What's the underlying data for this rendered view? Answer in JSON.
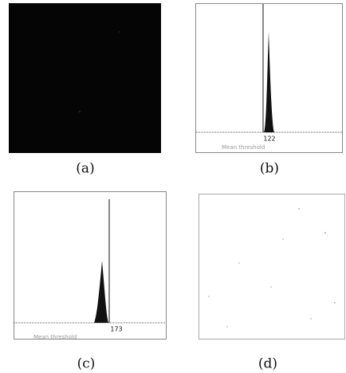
{
  "panels": [
    {
      "caption": "(a)"
    },
    {
      "caption": "(b)",
      "threshold_label": "122",
      "axis_note": "Mean threshold"
    },
    {
      "caption": "(c)",
      "threshold_label": "173",
      "axis_note": "Mean threshold"
    },
    {
      "caption": "(d)"
    }
  ]
}
